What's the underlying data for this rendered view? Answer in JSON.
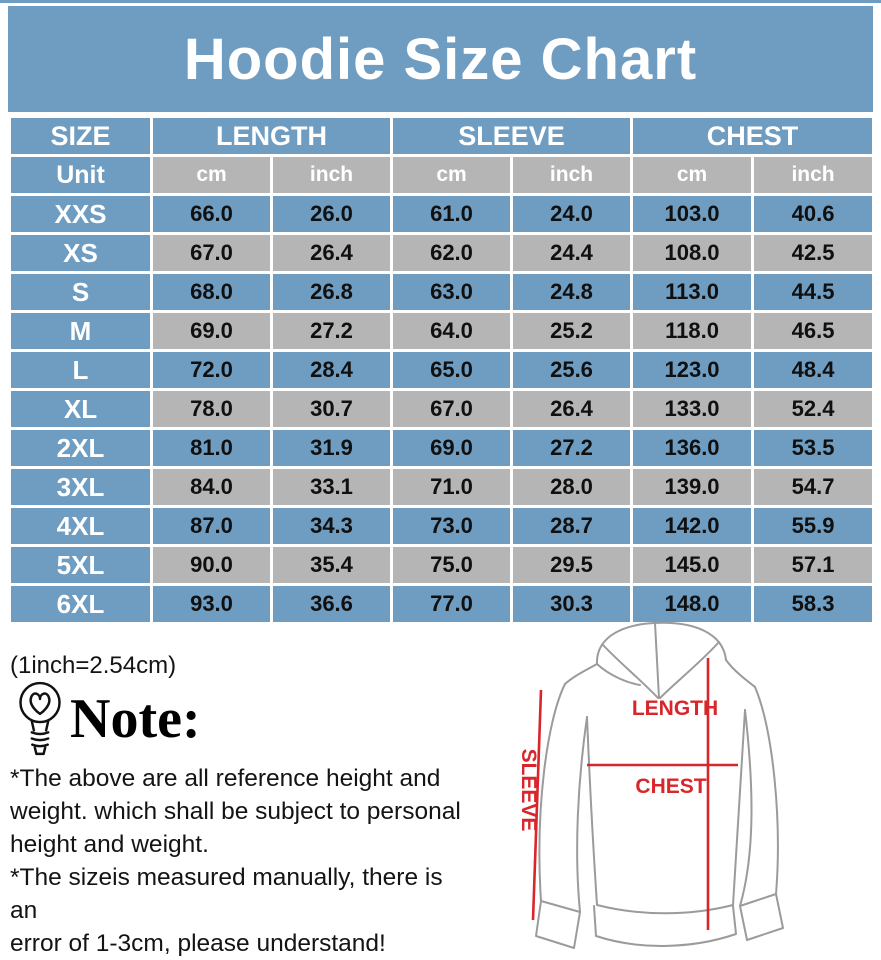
{
  "colors": {
    "blue": "#6f9dc2",
    "gray": "#b5b5b5",
    "red": "#d8262b"
  },
  "title": "Hoodie Size Chart",
  "table": {
    "size_header": "SIZE",
    "groups": [
      "LENGTH",
      "SLEEVE",
      "CHEST"
    ],
    "unit_label": "Unit",
    "units": [
      "cm",
      "inch",
      "cm",
      "inch",
      "cm",
      "inch"
    ],
    "rows": [
      {
        "size": "XXS",
        "values": [
          "66.0",
          "26.0",
          "61.0",
          "24.0",
          "103.0",
          "40.6"
        ]
      },
      {
        "size": "XS",
        "values": [
          "67.0",
          "26.4",
          "62.0",
          "24.4",
          "108.0",
          "42.5"
        ]
      },
      {
        "size": "S",
        "values": [
          "68.0",
          "26.8",
          "63.0",
          "24.8",
          "113.0",
          "44.5"
        ]
      },
      {
        "size": "M",
        "values": [
          "69.0",
          "27.2",
          "64.0",
          "25.2",
          "118.0",
          "46.5"
        ]
      },
      {
        "size": "L",
        "values": [
          "72.0",
          "28.4",
          "65.0",
          "25.6",
          "123.0",
          "48.4"
        ]
      },
      {
        "size": "XL",
        "values": [
          "78.0",
          "30.7",
          "67.0",
          "26.4",
          "133.0",
          "52.4"
        ]
      },
      {
        "size": "2XL",
        "values": [
          "81.0",
          "31.9",
          "69.0",
          "27.2",
          "136.0",
          "53.5"
        ]
      },
      {
        "size": "3XL",
        "values": [
          "84.0",
          "33.1",
          "71.0",
          "28.0",
          "139.0",
          "54.7"
        ]
      },
      {
        "size": "4XL",
        "values": [
          "87.0",
          "34.3",
          "73.0",
          "28.7",
          "142.0",
          "55.9"
        ]
      },
      {
        "size": "5XL",
        "values": [
          "90.0",
          "35.4",
          "75.0",
          "29.5",
          "145.0",
          "57.1"
        ]
      },
      {
        "size": "6XL",
        "values": [
          "93.0",
          "36.6",
          "77.0",
          "30.3",
          "148.0",
          "58.3"
        ]
      }
    ]
  },
  "footnote": "(1inch=2.54cm)",
  "note": {
    "heading": "Note:",
    "lines": [
      "*The above are all reference height and",
      "weight. which shall be subject to personal",
      "height and weight.",
      "*The sizeis measured manually, there is an",
      "error of 1-3cm, please understand!"
    ]
  },
  "diagram": {
    "length_label": "LENGTH",
    "chest_label": "CHEST",
    "sleeve_label": "SLEEVE"
  },
  "chart_data": {
    "type": "table",
    "title": "Hoodie Size Chart",
    "column_groups": [
      "SIZE",
      "LENGTH",
      "SLEEVE",
      "CHEST"
    ],
    "units_row": [
      "Unit",
      "cm",
      "inch",
      "cm",
      "inch",
      "cm",
      "inch"
    ],
    "rows": [
      [
        "XXS",
        66.0,
        26.0,
        61.0,
        24.0,
        103.0,
        40.6
      ],
      [
        "XS",
        67.0,
        26.4,
        62.0,
        24.4,
        108.0,
        42.5
      ],
      [
        "S",
        68.0,
        26.8,
        63.0,
        24.8,
        113.0,
        44.5
      ],
      [
        "M",
        69.0,
        27.2,
        64.0,
        25.2,
        118.0,
        46.5
      ],
      [
        "L",
        72.0,
        28.4,
        65.0,
        25.6,
        123.0,
        48.4
      ],
      [
        "XL",
        78.0,
        30.7,
        67.0,
        26.4,
        133.0,
        52.4
      ],
      [
        "2XL",
        81.0,
        31.9,
        69.0,
        27.2,
        136.0,
        53.5
      ],
      [
        "3XL",
        84.0,
        33.1,
        71.0,
        28.0,
        139.0,
        54.7
      ],
      [
        "4XL",
        87.0,
        34.3,
        73.0,
        28.7,
        142.0,
        55.9
      ],
      [
        "5XL",
        90.0,
        35.4,
        75.0,
        29.5,
        145.0,
        57.1
      ],
      [
        "6XL",
        93.0,
        36.6,
        77.0,
        30.3,
        148.0,
        58.3
      ]
    ],
    "footnote": "(1inch=2.54cm)",
    "legend_position": "none",
    "grid": true
  }
}
